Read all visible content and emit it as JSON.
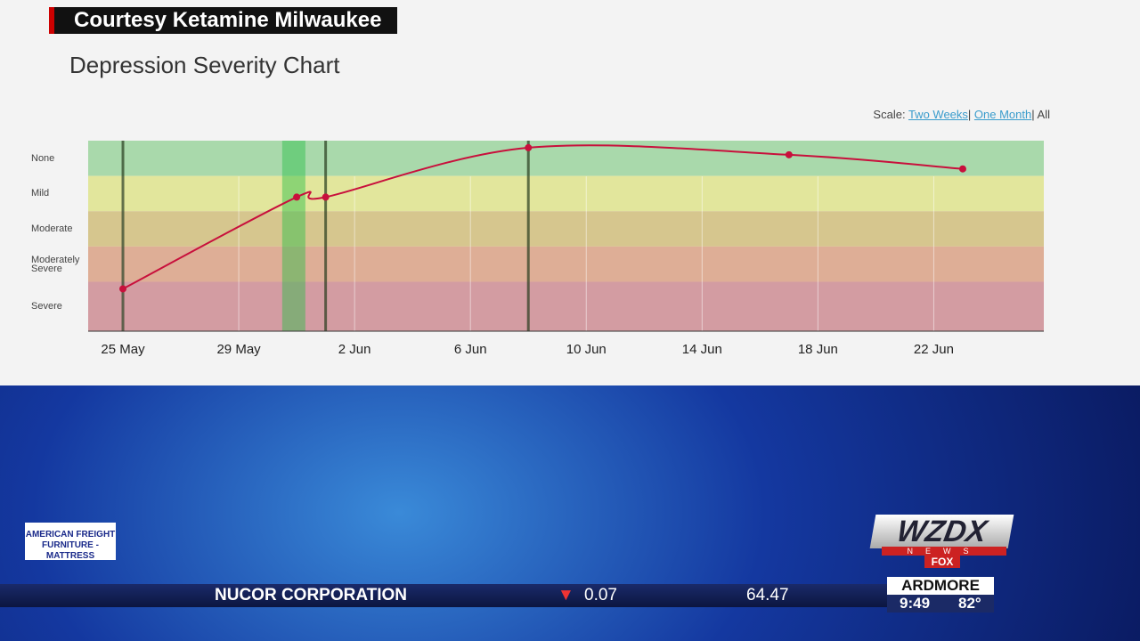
{
  "chart_data": {
    "type": "line",
    "title": "Depression Severity Chart",
    "x": [
      25,
      31,
      32,
      39,
      48,
      54
    ],
    "series": [
      {
        "color": "#c8103c",
        "values": [
          1.2,
          3.8,
          3.8,
          5.2,
          5.0,
          4.6
        ]
      }
    ],
    "xlim": [
      23.8,
      56.8
    ],
    "xticks": [
      {
        "value": 25,
        "label": "25 May"
      },
      {
        "value": 29,
        "label": "29 May"
      },
      {
        "value": 33,
        "label": "2 Jun"
      },
      {
        "value": 37,
        "label": "6 Jun"
      },
      {
        "value": 41,
        "label": "10 Jun"
      },
      {
        "value": 45,
        "label": "14 Jun"
      },
      {
        "value": 49,
        "label": "18 Jun"
      },
      {
        "value": 53,
        "label": "22 Jun"
      }
    ],
    "ylim": [
      0,
      5.4
    ],
    "yticks": [
      {
        "value": 4.9,
        "label": "None"
      },
      {
        "value": 3.9,
        "label": "Mild"
      },
      {
        "value": 2.9,
        "label": "Moderate"
      },
      {
        "value": 1.9,
        "label": "Moderately Severe"
      },
      {
        "value": 0.7,
        "label": "Severe"
      }
    ],
    "bands": [
      {
        "from": 4.4,
        "to": 5.4,
        "color": "#a9d9ab"
      },
      {
        "from": 3.4,
        "to": 4.4,
        "color": "#e2e69c"
      },
      {
        "from": 2.4,
        "to": 3.4,
        "color": "#d6c68e"
      },
      {
        "from": 1.4,
        "to": 2.4,
        "color": "#deae96"
      },
      {
        "from": 0,
        "to": 1.4,
        "color": "#d39ca2"
      }
    ],
    "markers": [
      25,
      32,
      39
    ],
    "highlight": [
      30.5,
      31.3
    ],
    "grid": true
  },
  "source": "Courtesy Ketamine Milwaukee",
  "scale": {
    "label": "Scale:",
    "options": [
      "Two Weeks",
      "One Month",
      "All"
    ],
    "separator": "|"
  },
  "ticker": {
    "name": "NUCOR CORPORATION",
    "change": "0.07",
    "price": "64.47"
  },
  "weather": {
    "city": "ARDMORE",
    "time": "9:49",
    "temp": "82°"
  },
  "logo": {
    "station": "WZDX",
    "sub": "NEWS",
    "network": "FOX"
  },
  "ad": {
    "line1": "AMERICAN FREIGHT",
    "line2": "FURNITURE - MATTRESS"
  }
}
